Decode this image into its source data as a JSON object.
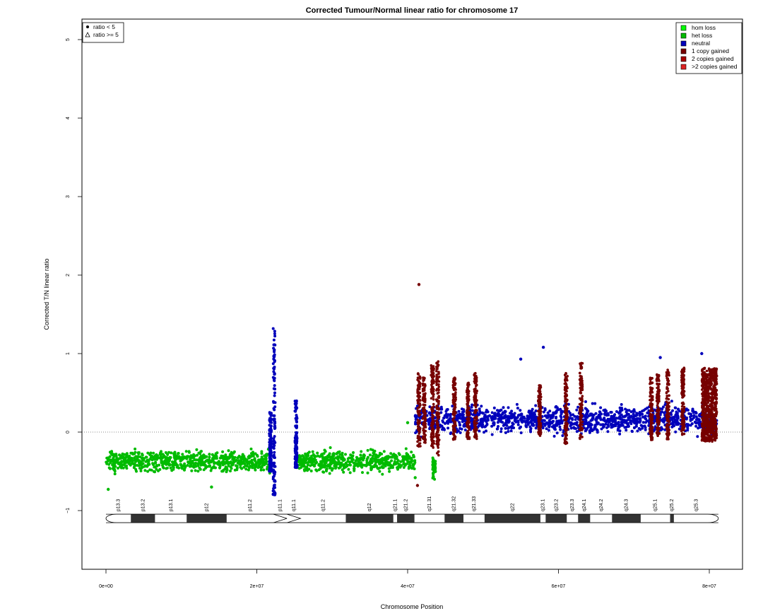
{
  "chart_data": {
    "type": "scatter",
    "title": "Corrected Tumour/Normal linear ratio for chromosome  17",
    "xlabel": "Chromosome Position",
    "ylabel": "Corrected T/N linear ratio",
    "xlim": [
      -3000000,
      84000000
    ],
    "ylim": [
      -1.75,
      5.3
    ],
    "x_ticks": [
      {
        "value": 0,
        "label": "0e+00"
      },
      {
        "value": 20000000,
        "label": "2e+07"
      },
      {
        "value": 40000000,
        "label": "4e+07"
      },
      {
        "value": 60000000,
        "label": "6e+07"
      },
      {
        "value": 80000000,
        "label": "8e+07"
      }
    ],
    "y_ticks": [
      {
        "value": -1,
        "label": "−1"
      },
      {
        "value": 0,
        "label": "0"
      },
      {
        "value": 1,
        "label": "1"
      },
      {
        "value": 2,
        "label": "2"
      },
      {
        "value": 3,
        "label": "3"
      },
      {
        "value": 4,
        "label": "4"
      },
      {
        "value": 5,
        "label": "5"
      }
    ],
    "reference_line": {
      "y": 0,
      "style": "dotted"
    },
    "shape_legend": {
      "placement": "top-left",
      "entries": [
        {
          "label": "ratio < 5",
          "symbol": "filled-circle"
        },
        {
          "label": "ratio >= 5",
          "symbol": "open-triangle"
        }
      ]
    },
    "color_legend": {
      "placement": "top-right",
      "entries": [
        {
          "label": "hom loss",
          "color": "#00ff00"
        },
        {
          "label": "het loss",
          "color": "#00bb00"
        },
        {
          "label": "neutral",
          "color": "#0000bb"
        },
        {
          "label": "1 copy gained",
          "color": "#770000"
        },
        {
          "label": "2 copies gained",
          "color": "#aa0000"
        },
        {
          "label": ">2 copies gained",
          "color": "#dd2222"
        }
      ]
    },
    "series": [
      {
        "name": "het loss",
        "color": "#00bb00",
        "segments": [
          {
            "x_start": 0,
            "x_end": 21800000,
            "center": -0.37,
            "spread": 0.34
          },
          {
            "x_start": 25200000,
            "x_end": 41000000,
            "center": -0.37,
            "spread": 0.34
          },
          {
            "x_start": 43300000,
            "x_end": 43700000,
            "center": -0.45,
            "spread": 0.3
          }
        ],
        "outliers": [
          [
            300000,
            -0.73
          ],
          [
            14000000,
            -0.7
          ],
          [
            41000000,
            -0.58
          ],
          [
            40000000,
            0.12
          ]
        ]
      },
      {
        "name": "neutral",
        "color": "#0000bb",
        "segments": [
          {
            "x_start": 41000000,
            "x_end": 81000000,
            "center": 0.16,
            "spread": 0.45
          }
        ],
        "spikes": [
          {
            "x": 22300000,
            "y_min": -0.8,
            "y_max": 1.41
          },
          {
            "x": 21800000,
            "y_min": -0.5,
            "y_max": 0.25
          },
          {
            "x": 25200000,
            "y_min": -0.45,
            "y_max": 0.41
          }
        ],
        "outliers": [
          [
            58000000,
            1.08
          ],
          [
            55000000,
            0.93
          ],
          [
            79000000,
            1.0
          ],
          [
            73500000,
            0.95
          ]
        ]
      },
      {
        "name": "1 copy gained",
        "color": "#770000",
        "strands": [
          {
            "x": 41500000,
            "y_min": -0.2,
            "y_max": 0.75
          },
          {
            "x": 42200000,
            "y_min": -0.15,
            "y_max": 0.7
          },
          {
            "x": 43300000,
            "y_min": -0.2,
            "y_max": 0.85
          },
          {
            "x": 44000000,
            "y_min": -0.3,
            "y_max": 0.9
          },
          {
            "x": 46200000,
            "y_min": -0.1,
            "y_max": 0.7
          },
          {
            "x": 48000000,
            "y_min": -0.1,
            "y_max": 0.65
          },
          {
            "x": 49000000,
            "y_min": -0.1,
            "y_max": 0.75
          },
          {
            "x": 57500000,
            "y_min": -0.05,
            "y_max": 0.6
          },
          {
            "x": 61000000,
            "y_min": -0.15,
            "y_max": 0.75
          },
          {
            "x": 63000000,
            "y_min": -0.1,
            "y_max": 0.9
          },
          {
            "x": 72300000,
            "y_min": -0.1,
            "y_max": 0.7
          },
          {
            "x": 73200000,
            "y_min": -0.05,
            "y_max": 0.75
          },
          {
            "x": 74500000,
            "y_min": -0.1,
            "y_max": 0.8
          },
          {
            "x": 76500000,
            "y_min": -0.05,
            "y_max": 0.85
          }
        ],
        "dense_block": {
          "x_start": 79000000,
          "x_end": 81000000,
          "y_min": -0.12,
          "y_max": 0.82
        },
        "outliers": [
          [
            41500000,
            1.88
          ],
          [
            41300000,
            -0.68
          ]
        ]
      }
    ],
    "cytobands": [
      {
        "name": "p13.3",
        "start": 0,
        "end": 3300000,
        "stain": "white"
      },
      {
        "name": "p13.2",
        "start": 3300000,
        "end": 6500000,
        "stain": "dark"
      },
      {
        "name": "p13.1",
        "start": 6500000,
        "end": 10700000,
        "stain": "white"
      },
      {
        "name": "p12",
        "start": 10700000,
        "end": 16000000,
        "stain": "dark"
      },
      {
        "name": "p11.2",
        "start": 16000000,
        "end": 22200000,
        "stain": "white"
      },
      {
        "name": "p11.1",
        "start": 22200000,
        "end": 24000000,
        "stain": "centromere"
      },
      {
        "name": "q11.1",
        "start": 24000000,
        "end": 25800000,
        "stain": "centromere"
      },
      {
        "name": "q11.2",
        "start": 25800000,
        "end": 31800000,
        "stain": "white"
      },
      {
        "name": "q12",
        "start": 31800000,
        "end": 38100000,
        "stain": "dark"
      },
      {
        "name": "q21.1",
        "start": 38100000,
        "end": 38600000,
        "stain": "white"
      },
      {
        "name": "q21.2",
        "start": 38600000,
        "end": 40900000,
        "stain": "dark"
      },
      {
        "name": "q21.31",
        "start": 40900000,
        "end": 44900000,
        "stain": "white"
      },
      {
        "name": "q21.32",
        "start": 44900000,
        "end": 47400000,
        "stain": "dark"
      },
      {
        "name": "q21.33",
        "start": 47400000,
        "end": 50200000,
        "stain": "white"
      },
      {
        "name": "q22",
        "start": 50200000,
        "end": 57600000,
        "stain": "dark"
      },
      {
        "name": "q23.1",
        "start": 57600000,
        "end": 58300000,
        "stain": "white"
      },
      {
        "name": "q23.2",
        "start": 58300000,
        "end": 61100000,
        "stain": "dark"
      },
      {
        "name": "q23.3",
        "start": 61100000,
        "end": 62600000,
        "stain": "white"
      },
      {
        "name": "q24.1",
        "start": 62600000,
        "end": 64200000,
        "stain": "dark"
      },
      {
        "name": "q24.2",
        "start": 64200000,
        "end": 67100000,
        "stain": "white"
      },
      {
        "name": "q24.3",
        "start": 67100000,
        "end": 70900000,
        "stain": "dark"
      },
      {
        "name": "q25.1",
        "start": 70900000,
        "end": 74800000,
        "stain": "white"
      },
      {
        "name": "q25.2",
        "start": 74800000,
        "end": 75300000,
        "stain": "dark"
      },
      {
        "name": "q25.3",
        "start": 75300000,
        "end": 81200000,
        "stain": "white"
      }
    ],
    "cytoband_y": -1.1,
    "grid": false
  }
}
